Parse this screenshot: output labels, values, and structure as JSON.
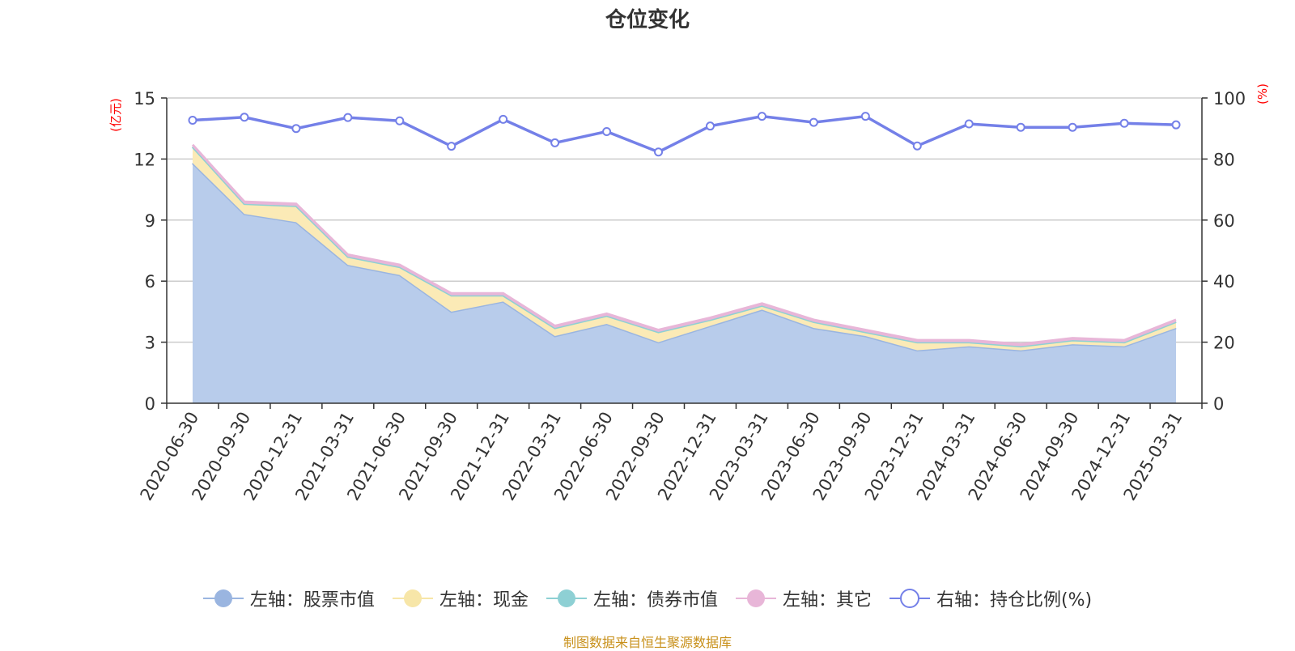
{
  "chart_data": {
    "type": "area",
    "title": "仓位变化",
    "x": [
      "2020-06-30",
      "2020-09-30",
      "2020-12-31",
      "2021-03-31",
      "2021-06-30",
      "2021-09-30",
      "2021-12-31",
      "2022-03-31",
      "2022-06-30",
      "2022-09-30",
      "2022-12-31",
      "2023-03-31",
      "2023-06-30",
      "2023-09-30",
      "2023-12-31",
      "2024-03-31",
      "2024-06-30",
      "2024-09-30",
      "2024-12-31",
      "2025-03-31"
    ],
    "left_axis": {
      "unit": "(亿元)",
      "ylim": [
        0,
        15
      ],
      "ticks": [
        0,
        3,
        6,
        9,
        12,
        15
      ]
    },
    "right_axis": {
      "unit": "(%)",
      "ylim": [
        0,
        100
      ],
      "ticks": [
        0,
        20,
        40,
        60,
        80,
        100
      ]
    },
    "grid": true,
    "legend_position": "bottom",
    "series": [
      {
        "name": "左轴：股票市值",
        "axis": "left",
        "kind": "area",
        "color": "#9ab5e0",
        "fill": "#b8cceb",
        "values": [
          11.8,
          9.3,
          8.9,
          6.8,
          6.3,
          4.5,
          5.0,
          3.3,
          3.9,
          3.0,
          3.8,
          4.6,
          3.7,
          3.3,
          2.6,
          2.8,
          2.6,
          2.9,
          2.8,
          3.7
        ]
      },
      {
        "name": "左轴：现金",
        "axis": "left",
        "kind": "area",
        "color": "#f7e6a8",
        "fill": "#fbeab6",
        "values": [
          0.8,
          0.5,
          0.8,
          0.4,
          0.4,
          0.8,
          0.3,
          0.4,
          0.4,
          0.5,
          0.3,
          0.2,
          0.3,
          0.2,
          0.4,
          0.2,
          0.2,
          0.2,
          0.2,
          0.3
        ]
      },
      {
        "name": "左轴：债券市值",
        "axis": "left",
        "kind": "area",
        "color": "#8ed0d4",
        "fill": "#a8dcdf",
        "values": [
          0,
          0,
          0,
          0,
          0,
          0,
          0,
          0,
          0,
          0,
          0,
          0,
          0,
          0,
          0,
          0,
          0,
          0,
          0,
          0
        ]
      },
      {
        "name": "左轴：其它",
        "axis": "left",
        "kind": "area",
        "color": "#e8b6d8",
        "fill": "#e8b6d8",
        "values": [
          0.1,
          0.1,
          0.1,
          0.1,
          0.1,
          0.1,
          0.1,
          0.1,
          0.1,
          0.1,
          0.1,
          0.1,
          0.1,
          0.1,
          0.1,
          0.1,
          0.1,
          0.1,
          0.1,
          0.1
        ]
      },
      {
        "name": "右轴：持仓比例(%)",
        "axis": "right",
        "kind": "line",
        "color": "#7480e8",
        "values": [
          92.7,
          93.7,
          90.0,
          93.6,
          92.5,
          84.2,
          93.0,
          85.3,
          89.0,
          82.3,
          90.8,
          94.0,
          92.0,
          94.0,
          84.3,
          91.5,
          90.4,
          90.4,
          91.7,
          91.2
        ]
      }
    ]
  },
  "legend": [
    {
      "label": "左轴：股票市值",
      "icon": "filled-circle",
      "color": "#9ab5e0"
    },
    {
      "label": "左轴：现金",
      "icon": "filled-circle",
      "color": "#f7e6a8"
    },
    {
      "label": "左轴：债券市值",
      "icon": "filled-circle",
      "color": "#8ed0d4"
    },
    {
      "label": "左轴：其它",
      "icon": "filled-circle",
      "color": "#e8b6d8"
    },
    {
      "label": "右轴：持仓比例(%)",
      "icon": "hollow-circle",
      "color": "#7480e8"
    }
  ],
  "footer": {
    "source": "制图数据来自恒生聚源数据库"
  }
}
